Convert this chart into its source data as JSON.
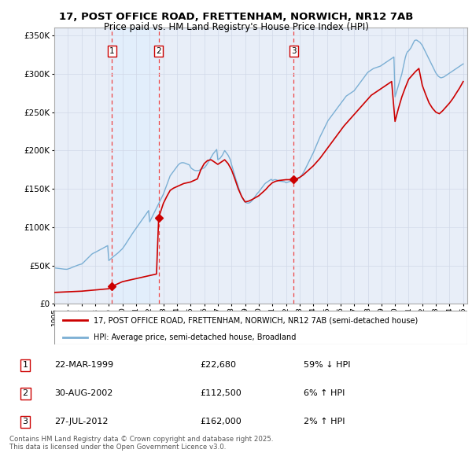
{
  "title1": "17, POST OFFICE ROAD, FRETTENHAM, NORWICH, NR12 7AB",
  "title2": "Price paid vs. HM Land Registry's House Price Index (HPI)",
  "legend_property": "17, POST OFFICE ROAD, FRETTENHAM, NORWICH, NR12 7AB (semi-detached house)",
  "legend_hpi": "HPI: Average price, semi-detached house, Broadland",
  "footer": "Contains HM Land Registry data © Crown copyright and database right 2025.\nThis data is licensed under the Open Government Licence v3.0.",
  "transactions": [
    {
      "num": 1,
      "date": "22-MAR-1999",
      "price": 22680,
      "pct": "59% ↓ HPI",
      "year": 1999.22
    },
    {
      "num": 2,
      "date": "30-AUG-2002",
      "price": 112500,
      "pct": "6% ↑ HPI",
      "year": 2002.66
    },
    {
      "num": 3,
      "date": "27-JUL-2012",
      "price": 162000,
      "pct": "2% ↑ HPI",
      "year": 2012.57
    }
  ],
  "property_color": "#cc0000",
  "hpi_color": "#7bafd4",
  "hpi_fill_color": "#ddeeff",
  "vline_color": "#ee4444",
  "ylim": [
    0,
    360000
  ],
  "yticks": [
    0,
    50000,
    100000,
    150000,
    200000,
    250000,
    300000,
    350000
  ],
  "hpi_data_years": [
    1995,
    1995.083,
    1995.167,
    1995.25,
    1995.333,
    1995.417,
    1995.5,
    1995.583,
    1995.667,
    1995.75,
    1995.833,
    1995.917,
    1996,
    1996.083,
    1996.167,
    1996.25,
    1996.333,
    1996.417,
    1996.5,
    1996.583,
    1996.667,
    1996.75,
    1996.833,
    1996.917,
    1997,
    1997.083,
    1997.167,
    1997.25,
    1997.333,
    1997.417,
    1997.5,
    1997.583,
    1997.667,
    1997.75,
    1997.833,
    1997.917,
    1998,
    1998.083,
    1998.167,
    1998.25,
    1998.333,
    1998.417,
    1998.5,
    1998.583,
    1998.667,
    1998.75,
    1998.833,
    1998.917,
    1999,
    1999.083,
    1999.167,
    1999.25,
    1999.333,
    1999.417,
    1999.5,
    1999.583,
    1999.667,
    1999.75,
    1999.833,
    1999.917,
    2000,
    2000.083,
    2000.167,
    2000.25,
    2000.333,
    2000.417,
    2000.5,
    2000.583,
    2000.667,
    2000.75,
    2000.833,
    2000.917,
    2001,
    2001.083,
    2001.167,
    2001.25,
    2001.333,
    2001.417,
    2001.5,
    2001.583,
    2001.667,
    2001.75,
    2001.833,
    2001.917,
    2002,
    2002.083,
    2002.167,
    2002.25,
    2002.333,
    2002.417,
    2002.5,
    2002.583,
    2002.667,
    2002.75,
    2002.833,
    2002.917,
    2003,
    2003.083,
    2003.167,
    2003.25,
    2003.333,
    2003.417,
    2003.5,
    2003.583,
    2003.667,
    2003.75,
    2003.833,
    2003.917,
    2004,
    2004.083,
    2004.167,
    2004.25,
    2004.333,
    2004.417,
    2004.5,
    2004.583,
    2004.667,
    2004.75,
    2004.833,
    2004.917,
    2005,
    2005.083,
    2005.167,
    2005.25,
    2005.333,
    2005.417,
    2005.5,
    2005.583,
    2005.667,
    2005.75,
    2005.833,
    2005.917,
    2006,
    2006.083,
    2006.167,
    2006.25,
    2006.333,
    2006.417,
    2006.5,
    2006.583,
    2006.667,
    2006.75,
    2006.833,
    2006.917,
    2007,
    2007.083,
    2007.167,
    2007.25,
    2007.333,
    2007.417,
    2007.5,
    2007.583,
    2007.667,
    2007.75,
    2007.833,
    2007.917,
    2008,
    2008.083,
    2008.167,
    2008.25,
    2008.333,
    2008.417,
    2008.5,
    2008.583,
    2008.667,
    2008.75,
    2008.833,
    2008.917,
    2009,
    2009.083,
    2009.167,
    2009.25,
    2009.333,
    2009.417,
    2009.5,
    2009.583,
    2009.667,
    2009.75,
    2009.833,
    2009.917,
    2010,
    2010.083,
    2010.167,
    2010.25,
    2010.333,
    2010.417,
    2010.5,
    2010.583,
    2010.667,
    2010.75,
    2010.833,
    2010.917,
    2011,
    2011.083,
    2011.167,
    2011.25,
    2011.333,
    2011.417,
    2011.5,
    2011.583,
    2011.667,
    2011.75,
    2011.833,
    2011.917,
    2012,
    2012.083,
    2012.167,
    2012.25,
    2012.333,
    2012.417,
    2012.5,
    2012.583,
    2012.667,
    2012.75,
    2012.833,
    2012.917,
    2013,
    2013.083,
    2013.167,
    2013.25,
    2013.333,
    2013.417,
    2013.5,
    2013.583,
    2013.667,
    2013.75,
    2013.833,
    2013.917,
    2014,
    2014.083,
    2014.167,
    2014.25,
    2014.333,
    2014.417,
    2014.5,
    2014.583,
    2014.667,
    2014.75,
    2014.833,
    2014.917,
    2015,
    2015.083,
    2015.167,
    2015.25,
    2015.333,
    2015.417,
    2015.5,
    2015.583,
    2015.667,
    2015.75,
    2015.833,
    2015.917,
    2016,
    2016.083,
    2016.167,
    2016.25,
    2016.333,
    2016.417,
    2016.5,
    2016.583,
    2016.667,
    2016.75,
    2016.833,
    2016.917,
    2017,
    2017.083,
    2017.167,
    2017.25,
    2017.333,
    2017.417,
    2017.5,
    2017.583,
    2017.667,
    2017.75,
    2017.833,
    2017.917,
    2018,
    2018.083,
    2018.167,
    2018.25,
    2018.333,
    2018.417,
    2018.5,
    2018.583,
    2018.667,
    2018.75,
    2018.833,
    2018.917,
    2019,
    2019.083,
    2019.167,
    2019.25,
    2019.333,
    2019.417,
    2019.5,
    2019.583,
    2019.667,
    2019.75,
    2019.833,
    2019.917,
    2020,
    2020.083,
    2020.167,
    2020.25,
    2020.333,
    2020.417,
    2020.5,
    2020.583,
    2020.667,
    2020.75,
    2020.833,
    2020.917,
    2021,
    2021.083,
    2021.167,
    2021.25,
    2021.333,
    2021.417,
    2021.5,
    2021.583,
    2021.667,
    2021.75,
    2021.833,
    2021.917,
    2022,
    2022.083,
    2022.167,
    2022.25,
    2022.333,
    2022.417,
    2022.5,
    2022.583,
    2022.667,
    2022.75,
    2022.833,
    2022.917,
    2023,
    2023.083,
    2023.167,
    2023.25,
    2023.333,
    2023.417,
    2023.5,
    2023.583,
    2023.667,
    2023.75,
    2023.833,
    2023.917,
    2024,
    2024.083,
    2024.167,
    2024.25,
    2024.333,
    2024.417,
    2024.5,
    2024.583,
    2024.667,
    2024.75,
    2024.833,
    2024.917,
    2025
  ],
  "hpi_data_values": [
    47000,
    46800,
    46600,
    46400,
    46200,
    46000,
    45800,
    45600,
    45400,
    45300,
    45200,
    45150,
    45500,
    46000,
    46500,
    47200,
    47800,
    48400,
    49000,
    49600,
    50200,
    50700,
    51200,
    51600,
    52000,
    53000,
    54500,
    56000,
    57500,
    59000,
    60500,
    62000,
    63500,
    64800,
    65800,
    66500,
    67200,
    68000,
    68800,
    69600,
    70400,
    71200,
    72000,
    72800,
    73600,
    74400,
    75200,
    76000,
    56500,
    57800,
    59100,
    60400,
    61700,
    62800,
    64000,
    65200,
    66400,
    67800,
    69200,
    70600,
    72000,
    74000,
    76200,
    78500,
    80800,
    83100,
    85400,
    87700,
    90000,
    92200,
    94400,
    96500,
    98600,
    100700,
    102800,
    104900,
    107000,
    109100,
    111200,
    113300,
    115400,
    117500,
    119600,
    121700,
    107000,
    110000,
    113000,
    116000,
    119000,
    122000,
    125000,
    128000,
    131000,
    134000,
    137000,
    140000,
    143000,
    147000,
    151000,
    155000,
    159000,
    163000,
    167000,
    169000,
    171000,
    173000,
    175000,
    177000,
    179000,
    181000,
    182500,
    183500,
    184000,
    184200,
    184000,
    183600,
    183000,
    182400,
    181800,
    181200,
    178000,
    176500,
    175500,
    174500,
    174000,
    173800,
    173800,
    174000,
    174500,
    175200,
    176000,
    176800,
    177600,
    179000,
    181000,
    183500,
    186000,
    188500,
    191000,
    193500,
    196000,
    197800,
    199600,
    201400,
    188000,
    189000,
    190000,
    192000,
    194000,
    197000,
    200000,
    198000,
    196000,
    194000,
    191000,
    188000,
    182000,
    177000,
    172000,
    167000,
    162000,
    158000,
    153000,
    148500,
    144000,
    140000,
    137000,
    134500,
    133000,
    132000,
    131500,
    131500,
    132000,
    133000,
    134500,
    136500,
    138500,
    140500,
    142500,
    144500,
    146000,
    148000,
    150000,
    152000,
    154000,
    156000,
    157500,
    158500,
    159500,
    160500,
    161500,
    162500,
    161000,
    161500,
    162000,
    162000,
    161500,
    161000,
    160500,
    160000,
    159800,
    159600,
    159400,
    159200,
    158000,
    158500,
    159000,
    159500,
    160000,
    160500,
    161000,
    161500,
    162000,
    162500,
    163000,
    163500,
    164500,
    166000,
    168000,
    170500,
    173000,
    176000,
    179000,
    182000,
    185000,
    188000,
    191000,
    194000,
    197000,
    200500,
    204000,
    207500,
    211000,
    214500,
    218000,
    221000,
    224000,
    227000,
    230000,
    233000,
    236000,
    239000,
    241000,
    243000,
    245000,
    247000,
    249000,
    251000,
    253000,
    255000,
    257000,
    259000,
    261000,
    263000,
    265000,
    267000,
    269000,
    271000,
    272000,
    273000,
    274000,
    275000,
    276000,
    277000,
    278000,
    280000,
    282000,
    284000,
    286000,
    288000,
    290000,
    292000,
    294000,
    296000,
    298000,
    300000,
    302000,
    303000,
    304000,
    305000,
    306000,
    307000,
    307500,
    308000,
    308500,
    309000,
    309500,
    310000,
    311000,
    312000,
    313000,
    314000,
    315000,
    316000,
    317000,
    318000,
    319000,
    320000,
    321000,
    322000,
    270000,
    275000,
    280000,
    285000,
    290000,
    295000,
    300000,
    307000,
    314000,
    321000,
    326000,
    329000,
    330000,
    332000,
    334000,
    337000,
    340000,
    343000,
    344000,
    344000,
    343000,
    342000,
    341000,
    339000,
    337000,
    334000,
    331000,
    328000,
    325000,
    322000,
    319000,
    316000,
    313000,
    310000,
    307000,
    304000,
    301000,
    299000,
    297000,
    296000,
    295000,
    295000,
    295500,
    296000,
    297000,
    298000,
    299000,
    300000,
    301000,
    302000,
    303000,
    304000,
    305000,
    306000,
    307000,
    308000,
    309000,
    310000,
    311000,
    312000,
    313000
  ],
  "prop_data_years": [
    1995,
    1995.25,
    1995.5,
    1995.75,
    1996,
    1996.25,
    1996.5,
    1996.75,
    1997,
    1997.25,
    1997.5,
    1997.75,
    1998,
    1998.25,
    1998.5,
    1998.75,
    1999,
    1999.22,
    1999.5,
    1999.75,
    2000,
    2000.25,
    2000.5,
    2000.75,
    2001,
    2001.25,
    2001.5,
    2001.75,
    2002,
    2002.25,
    2002.5,
    2002.66,
    2003,
    2003.25,
    2003.5,
    2003.75,
    2004,
    2004.25,
    2004.5,
    2004.75,
    2005,
    2005.25,
    2005.5,
    2005.75,
    2006,
    2006.25,
    2006.5,
    2006.75,
    2007,
    2007.25,
    2007.5,
    2007.75,
    2008,
    2008.25,
    2008.5,
    2008.75,
    2009,
    2009.25,
    2009.5,
    2009.75,
    2010,
    2010.25,
    2010.5,
    2010.75,
    2011,
    2011.25,
    2011.5,
    2011.75,
    2012,
    2012.25,
    2012.57,
    2012.75,
    2013,
    2013.25,
    2013.5,
    2013.75,
    2014,
    2014.25,
    2014.5,
    2014.75,
    2015,
    2015.25,
    2015.5,
    2015.75,
    2016,
    2016.25,
    2016.5,
    2016.75,
    2017,
    2017.25,
    2017.5,
    2017.75,
    2018,
    2018.25,
    2018.5,
    2018.75,
    2019,
    2019.25,
    2019.5,
    2019.75,
    2020,
    2020.25,
    2020.5,
    2020.75,
    2021,
    2021.25,
    2021.5,
    2021.75,
    2022,
    2022.25,
    2022.5,
    2022.75,
    2023,
    2023.25,
    2023.5,
    2023.75,
    2024,
    2024.25,
    2024.5,
    2024.75,
    2025
  ],
  "prop_data_values": [
    15000,
    15200,
    15400,
    15600,
    15800,
    16000,
    16200,
    16400,
    16600,
    17000,
    17400,
    17800,
    18200,
    18600,
    19000,
    19400,
    19800,
    22680,
    25000,
    27000,
    29000,
    30000,
    31000,
    32000,
    33000,
    34000,
    35000,
    36000,
    37000,
    38000,
    39000,
    112500,
    131000,
    140000,
    148000,
    151000,
    153000,
    155000,
    157000,
    158000,
    159000,
    161000,
    163000,
    175000,
    183000,
    187000,
    188000,
    185000,
    182000,
    185000,
    188000,
    183000,
    175000,
    163000,
    150000,
    140000,
    133000,
    134000,
    136000,
    138500,
    141000,
    145000,
    149000,
    154000,
    158000,
    160000,
    161000,
    161500,
    162000,
    162000,
    162000,
    163000,
    165000,
    168000,
    172000,
    176000,
    180000,
    185000,
    190000,
    196000,
    202000,
    208000,
    214000,
    220000,
    226000,
    232000,
    237000,
    242000,
    247000,
    252000,
    257000,
    262000,
    267000,
    272000,
    275000,
    278000,
    281000,
    284000,
    287000,
    290000,
    238000,
    255000,
    270000,
    282000,
    293000,
    298000,
    303000,
    307000,
    285000,
    273000,
    262000,
    255000,
    250000,
    248000,
    252000,
    257000,
    262000,
    268000,
    275000,
    282000,
    290000
  ]
}
